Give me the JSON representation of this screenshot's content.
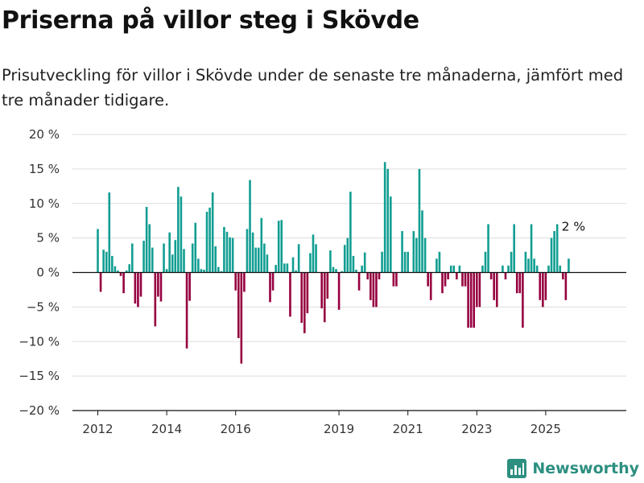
{
  "header": {
    "title": "Priserna på villor steg i Skövde",
    "subtitle": "Prisutveckling för villor i Skövde under de senaste tre månaderna, jämfört med tre månader tidigare."
  },
  "brand": {
    "name": "Newsworthy",
    "icon": "bar-chart-logo-icon"
  },
  "colors": {
    "positive": "#119e92",
    "negative": "#96003f",
    "grid": "#dddddd",
    "axis": "#111111"
  },
  "chart_data": {
    "type": "bar",
    "title": "Priserna på villor steg i Skövde",
    "xlabel": "",
    "ylabel": "",
    "ylim": [
      -20,
      20
    ],
    "yticks": [
      20,
      15,
      10,
      5,
      0,
      -5,
      -10,
      -15,
      -20
    ],
    "ytick_labels": [
      "20 %",
      "15 %",
      "10 %",
      "5 %",
      "0 %",
      "−5 %",
      "−10 %",
      "−15 %",
      "−20 %"
    ],
    "xticks": [
      "2012",
      "2014",
      "2016",
      "2019",
      "2021",
      "2023",
      "2025"
    ],
    "grid": true,
    "x_start": "2012-01",
    "frequency": "monthly",
    "annotation": {
      "text": "2 %",
      "x": "2025-11",
      "y": 2
    },
    "values": [
      6.3,
      -2.8,
      3.3,
      3.0,
      11.6,
      2.4,
      0.9,
      0.3,
      -0.5,
      -3.0,
      0.3,
      1.2,
      4.2,
      -4.5,
      -5.0,
      -3.5,
      4.6,
      9.5,
      7.0,
      3.6,
      -7.8,
      -3.5,
      -4.2,
      4.2,
      0.5,
      5.8,
      2.6,
      4.7,
      12.4,
      11.0,
      3.4,
      -11.0,
      -4.1,
      4.2,
      7.2,
      2.0,
      0.5,
      0.4,
      8.8,
      9.4,
      11.6,
      3.8,
      0.8,
      0.2,
      6.6,
      5.9,
      5.1,
      5.0,
      -2.6,
      -9.5,
      -13.2,
      -2.8,
      6.3,
      13.4,
      5.8,
      3.6,
      3.6,
      7.9,
      4.2,
      2.6,
      -4.3,
      -2.6,
      1.1,
      7.5,
      7.6,
      1.3,
      1.3,
      -6.4,
      2.2,
      0.3,
      4.1,
      -7.3,
      -8.8,
      -5.9,
      2.8,
      5.5,
      4.1,
      0.0,
      -5.2,
      -7.2,
      -3.8,
      3.2,
      0.8,
      0.5,
      -5.4,
      0.2,
      4.0,
      5.0,
      11.7,
      2.4,
      0.4,
      -2.6,
      1.0,
      2.9,
      -1.0,
      -4.0,
      -5.0,
      -5.0,
      -1.0,
      3.0,
      16.0,
      15.0,
      11.0,
      -2.0,
      -2.0,
      0.0,
      6.0,
      3.0,
      3.0,
      0.0,
      6.0,
      5.0,
      15.0,
      9.0,
      5.0,
      -2.0,
      -4.0,
      0.0,
      2.0,
      3.0,
      -3.0,
      -2.0,
      -1.0,
      1.0,
      1.0,
      -1.0,
      1.0,
      -2.0,
      -2.0,
      -8.0,
      -8.0,
      -8.0,
      -5.0,
      -5.0,
      1.0,
      3.0,
      7.0,
      -1.0,
      -4.0,
      -5.0,
      0.0,
      1.0,
      -1.0,
      1.0,
      3.0,
      7.0,
      -3.0,
      -3.0,
      -8.0,
      3.0,
      2.0,
      7.0,
      2.0,
      1.0,
      -4.0,
      -5.0,
      -4.0,
      1.0,
      5.0,
      6.0,
      7.0,
      1.0,
      -1.0,
      -4.0,
      2.0
    ]
  }
}
